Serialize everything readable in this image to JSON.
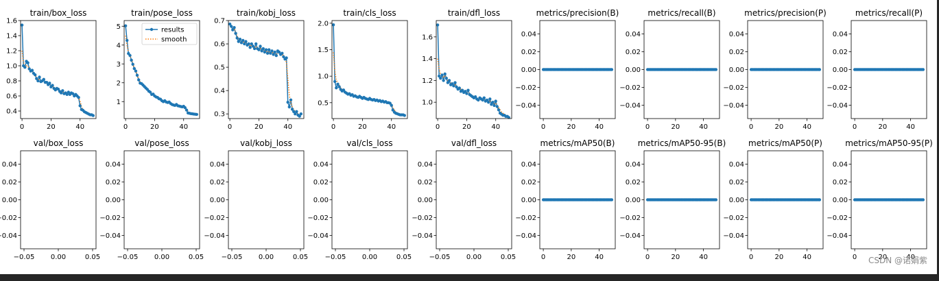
{
  "figure": {
    "watermark": "CSDN @诺娟紫",
    "colors": {
      "results": "#1f77b4",
      "smooth": "#ff7f0e",
      "axis": "#000000"
    }
  },
  "chart_data": [
    {
      "type": "line",
      "title": "train/box_loss",
      "xlim": [
        -1,
        51
      ],
      "ylim": [
        0.3,
        1.6
      ],
      "xticks": [
        0,
        20,
        40
      ],
      "yticks": [
        0.4,
        0.6,
        0.8,
        1.0,
        1.2,
        1.4,
        1.6
      ],
      "x": [
        0,
        1,
        2,
        3,
        4,
        5,
        6,
        7,
        8,
        9,
        10,
        11,
        12,
        13,
        14,
        15,
        16,
        17,
        18,
        19,
        20,
        21,
        22,
        23,
        24,
        25,
        26,
        27,
        28,
        29,
        30,
        31,
        32,
        33,
        34,
        35,
        36,
        37,
        38,
        39,
        40,
        41,
        42,
        43,
        44,
        45,
        46,
        47,
        48,
        49
      ],
      "results": [
        1.54,
        1.0,
        0.98,
        1.06,
        1.04,
        0.96,
        0.93,
        0.94,
        0.9,
        0.88,
        0.83,
        0.8,
        0.85,
        0.79,
        0.8,
        0.82,
        0.78,
        0.78,
        0.75,
        0.77,
        0.72,
        0.74,
        0.7,
        0.68,
        0.7,
        0.69,
        0.66,
        0.64,
        0.67,
        0.63,
        0.64,
        0.62,
        0.65,
        0.62,
        0.64,
        0.63,
        0.6,
        0.62,
        0.6,
        0.58,
        0.47,
        0.42,
        0.41,
        0.39,
        0.38,
        0.37,
        0.36,
        0.35,
        0.35,
        0.34
      ],
      "smooth": [
        1.2,
        1.05,
        1.0,
        1.0,
        1.0,
        0.96,
        0.94,
        0.93,
        0.9,
        0.88,
        0.85,
        0.82,
        0.82,
        0.8,
        0.8,
        0.8,
        0.78,
        0.77,
        0.76,
        0.75,
        0.73,
        0.73,
        0.71,
        0.7,
        0.7,
        0.68,
        0.67,
        0.66,
        0.66,
        0.64,
        0.64,
        0.63,
        0.63,
        0.62,
        0.62,
        0.62,
        0.61,
        0.61,
        0.6,
        0.58,
        0.53,
        0.46,
        0.42,
        0.4,
        0.38,
        0.37,
        0.36,
        0.35,
        0.35,
        0.34
      ],
      "legend": null
    },
    {
      "type": "line",
      "title": "train/pose_loss",
      "xlim": [
        -1,
        51
      ],
      "ylim": [
        0.1,
        5.3
      ],
      "xticks": [
        0,
        20,
        40
      ],
      "yticks": [
        1,
        2,
        3,
        4,
        5
      ],
      "x": [
        0,
        1,
        2,
        3,
        4,
        5,
        6,
        7,
        8,
        9,
        10,
        11,
        12,
        13,
        14,
        15,
        16,
        17,
        18,
        19,
        20,
        21,
        22,
        23,
        24,
        25,
        26,
        27,
        28,
        29,
        30,
        31,
        32,
        33,
        34,
        35,
        36,
        37,
        38,
        39,
        40,
        41,
        42,
        43,
        44,
        45,
        46,
        47,
        48,
        49
      ],
      "results": [
        5.02,
        4.25,
        3.55,
        3.45,
        3.2,
        2.98,
        2.75,
        2.62,
        2.4,
        2.15,
        1.98,
        1.95,
        1.88,
        1.8,
        1.72,
        1.65,
        1.55,
        1.5,
        1.38,
        1.4,
        1.3,
        1.25,
        1.22,
        1.15,
        1.13,
        1.05,
        1.0,
        1.05,
        0.98,
        0.95,
        0.98,
        0.9,
        0.85,
        0.82,
        0.8,
        0.85,
        0.78,
        0.76,
        0.74,
        0.72,
        0.75,
        0.68,
        0.55,
        0.4,
        0.38,
        0.36,
        0.35,
        0.34,
        0.33,
        0.32
      ],
      "smooth": [
        4.5,
        4.0,
        3.6,
        3.45,
        3.25,
        3.0,
        2.8,
        2.62,
        2.42,
        2.2,
        2.04,
        1.96,
        1.88,
        1.8,
        1.72,
        1.64,
        1.56,
        1.5,
        1.42,
        1.38,
        1.32,
        1.27,
        1.22,
        1.17,
        1.13,
        1.07,
        1.03,
        1.02,
        0.98,
        0.96,
        0.95,
        0.91,
        0.87,
        0.84,
        0.82,
        0.82,
        0.79,
        0.77,
        0.75,
        0.73,
        0.72,
        0.68,
        0.6,
        0.5,
        0.42,
        0.38,
        0.36,
        0.35,
        0.34,
        0.33
      ],
      "legend": {
        "entries": [
          "results",
          "smooth"
        ],
        "placement": "upper right"
      }
    },
    {
      "type": "line",
      "title": "train/kobj_loss",
      "xlim": [
        -1,
        51
      ],
      "ylim": [
        0.28,
        0.7
      ],
      "xticks": [
        0,
        20,
        40
      ],
      "yticks": [
        0.3,
        0.4,
        0.5,
        0.6,
        0.7
      ],
      "x": [
        0,
        1,
        2,
        3,
        4,
        5,
        6,
        7,
        8,
        9,
        10,
        11,
        12,
        13,
        14,
        15,
        16,
        17,
        18,
        19,
        20,
        21,
        22,
        23,
        24,
        25,
        26,
        27,
        28,
        29,
        30,
        31,
        32,
        33,
        34,
        35,
        36,
        37,
        38,
        39,
        40,
        41,
        42,
        43,
        44,
        45,
        46,
        47,
        48,
        49
      ],
      "results": [
        0.685,
        0.675,
        0.66,
        0.67,
        0.645,
        0.625,
        0.61,
        0.62,
        0.605,
        0.615,
        0.6,
        0.61,
        0.595,
        0.6,
        0.585,
        0.6,
        0.59,
        0.58,
        0.6,
        0.58,
        0.575,
        0.59,
        0.57,
        0.58,
        0.565,
        0.575,
        0.56,
        0.575,
        0.56,
        0.57,
        0.555,
        0.565,
        0.55,
        0.57,
        0.565,
        0.555,
        0.56,
        0.545,
        0.535,
        0.54,
        0.35,
        0.33,
        0.36,
        0.32,
        0.31,
        0.3,
        0.31,
        0.295,
        0.29,
        0.3
      ],
      "smooth": [
        0.685,
        0.68,
        0.67,
        0.665,
        0.65,
        0.635,
        0.62,
        0.62,
        0.61,
        0.61,
        0.605,
        0.605,
        0.6,
        0.6,
        0.59,
        0.595,
        0.59,
        0.585,
        0.59,
        0.58,
        0.58,
        0.58,
        0.575,
        0.575,
        0.57,
        0.57,
        0.565,
        0.565,
        0.56,
        0.565,
        0.56,
        0.56,
        0.555,
        0.56,
        0.56,
        0.555,
        0.555,
        0.55,
        0.54,
        0.52,
        0.45,
        0.38,
        0.35,
        0.33,
        0.32,
        0.31,
        0.305,
        0.3,
        0.3,
        0.3
      ],
      "legend": null
    },
    {
      "type": "line",
      "title": "train/cls_loss",
      "xlim": [
        -1,
        51
      ],
      "ylim": [
        0.2,
        2.05
      ],
      "xticks": [
        0,
        20,
        40
      ],
      "yticks": [
        0.5,
        1.0,
        1.5,
        2.0
      ],
      "x": [
        0,
        1,
        2,
        3,
        4,
        5,
        6,
        7,
        8,
        9,
        10,
        11,
        12,
        13,
        14,
        15,
        16,
        17,
        18,
        19,
        20,
        21,
        22,
        23,
        24,
        25,
        26,
        27,
        28,
        29,
        30,
        31,
        32,
        33,
        34,
        35,
        36,
        37,
        38,
        39,
        40,
        41,
        42,
        43,
        44,
        45,
        46,
        47,
        48,
        49
      ],
      "results": [
        1.97,
        0.9,
        0.78,
        0.85,
        0.8,
        0.75,
        0.72,
        0.74,
        0.7,
        0.68,
        0.66,
        0.67,
        0.64,
        0.65,
        0.62,
        0.63,
        0.61,
        0.6,
        0.62,
        0.6,
        0.58,
        0.6,
        0.58,
        0.57,
        0.56,
        0.58,
        0.56,
        0.55,
        0.56,
        0.54,
        0.55,
        0.53,
        0.54,
        0.52,
        0.53,
        0.51,
        0.52,
        0.5,
        0.5,
        0.49,
        0.45,
        0.36,
        0.32,
        0.3,
        0.29,
        0.28,
        0.27,
        0.27,
        0.27,
        0.26
      ],
      "smooth": [
        1.45,
        1.1,
        0.92,
        0.88,
        0.83,
        0.78,
        0.75,
        0.74,
        0.72,
        0.7,
        0.68,
        0.67,
        0.66,
        0.65,
        0.64,
        0.63,
        0.62,
        0.61,
        0.61,
        0.6,
        0.59,
        0.59,
        0.58,
        0.58,
        0.57,
        0.57,
        0.56,
        0.56,
        0.56,
        0.55,
        0.55,
        0.54,
        0.54,
        0.53,
        0.53,
        0.52,
        0.52,
        0.51,
        0.5,
        0.5,
        0.47,
        0.41,
        0.36,
        0.33,
        0.3,
        0.29,
        0.28,
        0.27,
        0.27,
        0.26
      ],
      "legend": null
    },
    {
      "type": "line",
      "title": "train/dfl_loss",
      "xlim": [
        -1,
        51
      ],
      "ylim": [
        0.85,
        1.75
      ],
      "xticks": [
        0,
        20,
        40
      ],
      "yticks": [
        1.0,
        1.2,
        1.4,
        1.6
      ],
      "x": [
        0,
        1,
        2,
        3,
        4,
        5,
        6,
        7,
        8,
        9,
        10,
        11,
        12,
        13,
        14,
        15,
        16,
        17,
        18,
        19,
        20,
        21,
        22,
        23,
        24,
        25,
        26,
        27,
        28,
        29,
        30,
        31,
        32,
        33,
        34,
        35,
        36,
        37,
        38,
        39,
        40,
        41,
        42,
        43,
        44,
        45,
        46,
        47,
        48,
        49
      ],
      "results": [
        1.71,
        1.24,
        1.22,
        1.25,
        1.2,
        1.26,
        1.22,
        1.18,
        1.2,
        1.16,
        1.17,
        1.15,
        1.18,
        1.14,
        1.12,
        1.13,
        1.1,
        1.11,
        1.09,
        1.1,
        1.08,
        1.11,
        1.07,
        1.06,
        1.05,
        1.04,
        1.05,
        1.03,
        1.02,
        1.04,
        1.03,
        1.02,
        1.04,
        1.01,
        1.02,
        1.0,
        1.03,
        0.98,
        1.0,
        0.97,
        1.01,
        0.96,
        0.93,
        0.9,
        0.89,
        0.88,
        0.88,
        0.87,
        0.87,
        0.86
      ],
      "smooth": [
        1.4,
        1.3,
        1.26,
        1.25,
        1.23,
        1.24,
        1.22,
        1.2,
        1.2,
        1.18,
        1.17,
        1.16,
        1.16,
        1.15,
        1.14,
        1.13,
        1.12,
        1.11,
        1.1,
        1.1,
        1.09,
        1.09,
        1.08,
        1.07,
        1.06,
        1.05,
        1.05,
        1.04,
        1.03,
        1.03,
        1.03,
        1.02,
        1.03,
        1.02,
        1.02,
        1.01,
        1.01,
        1.0,
        1.0,
        0.99,
        0.99,
        0.97,
        0.95,
        0.93,
        0.91,
        0.9,
        0.89,
        0.88,
        0.87,
        0.87
      ],
      "legend": null
    },
    {
      "type": "line",
      "title": "metrics/precision(B)",
      "xlim": [
        -2.5,
        51.5
      ],
      "ylim": [
        -0.055,
        0.055
      ],
      "xticks": [
        0,
        20,
        40
      ],
      "yticks": [
        -0.04,
        -0.02,
        0.0,
        0.02,
        0.04
      ],
      "ytick_labels": [
        "−0.04",
        "−0.02",
        "0.00",
        "0.02",
        "0.04"
      ],
      "constant": 0,
      "n": 50,
      "legend": null
    },
    {
      "type": "line",
      "title": "metrics/recall(B)",
      "xlim": [
        -2.5,
        51.5
      ],
      "ylim": [
        -0.055,
        0.055
      ],
      "xticks": [
        0,
        20,
        40
      ],
      "yticks": [
        -0.04,
        -0.02,
        0.0,
        0.02,
        0.04
      ],
      "ytick_labels": [
        "−0.04",
        "−0.02",
        "0.00",
        "0.02",
        "0.04"
      ],
      "constant": 0,
      "n": 50,
      "legend": null
    },
    {
      "type": "line",
      "title": "metrics/precision(P)",
      "xlim": [
        -2.5,
        51.5
      ],
      "ylim": [
        -0.055,
        0.055
      ],
      "xticks": [
        0,
        20,
        40
      ],
      "yticks": [
        -0.04,
        -0.02,
        0.0,
        0.02,
        0.04
      ],
      "ytick_labels": [
        "−0.04",
        "−0.02",
        "0.00",
        "0.02",
        "0.04"
      ],
      "constant": 0,
      "n": 50,
      "legend": null
    },
    {
      "type": "line",
      "title": "metrics/recall(P)",
      "xlim": [
        -2.5,
        51.5
      ],
      "ylim": [
        -0.055,
        0.055
      ],
      "xticks": [
        0,
        20,
        40
      ],
      "yticks": [
        -0.04,
        -0.02,
        0.0,
        0.02,
        0.04
      ],
      "ytick_labels": [
        "−0.04",
        "−0.02",
        "0.00",
        "0.02",
        "0.04"
      ],
      "constant": 0,
      "n": 50,
      "legend": null
    },
    {
      "type": "line",
      "title": "val/box_loss",
      "xlim": [
        -0.055,
        0.055
      ],
      "ylim": [
        -0.055,
        0.055
      ],
      "xticks": [
        -0.05,
        0.0,
        0.05
      ],
      "xtick_labels": [
        "−0.05",
        "0.00",
        "0.05"
      ],
      "yticks": [
        -0.04,
        -0.02,
        0.0,
        0.02,
        0.04
      ],
      "ytick_labels": [
        "−0.04",
        "−0.02",
        "0.00",
        "0.02",
        "0.04"
      ],
      "empty": true,
      "legend": null
    },
    {
      "type": "line",
      "title": "val/pose_loss",
      "xlim": [
        -0.055,
        0.055
      ],
      "ylim": [
        -0.055,
        0.055
      ],
      "xticks": [
        -0.05,
        0.0,
        0.05
      ],
      "xtick_labels": [
        "−0.05",
        "0.00",
        "0.05"
      ],
      "yticks": [
        -0.04,
        -0.02,
        0.0,
        0.02,
        0.04
      ],
      "ytick_labels": [
        "−0.04",
        "−0.02",
        "0.00",
        "0.02",
        "0.04"
      ],
      "empty": true,
      "legend": null
    },
    {
      "type": "line",
      "title": "val/kobj_loss",
      "xlim": [
        -0.055,
        0.055
      ],
      "ylim": [
        -0.055,
        0.055
      ],
      "xticks": [
        -0.05,
        0.0,
        0.05
      ],
      "xtick_labels": [
        "−0.05",
        "0.00",
        "0.05"
      ],
      "yticks": [
        -0.04,
        -0.02,
        0.0,
        0.02,
        0.04
      ],
      "ytick_labels": [
        "−0.04",
        "−0.02",
        "0.00",
        "0.02",
        "0.04"
      ],
      "empty": true,
      "legend": null
    },
    {
      "type": "line",
      "title": "val/cls_loss",
      "xlim": [
        -0.055,
        0.055
      ],
      "ylim": [
        -0.055,
        0.055
      ],
      "xticks": [
        -0.05,
        0.0,
        0.05
      ],
      "xtick_labels": [
        "−0.05",
        "0.00",
        "0.05"
      ],
      "yticks": [
        -0.04,
        -0.02,
        0.0,
        0.02,
        0.04
      ],
      "ytick_labels": [
        "−0.04",
        "−0.02",
        "0.00",
        "0.02",
        "0.04"
      ],
      "empty": true,
      "legend": null
    },
    {
      "type": "line",
      "title": "val/dfl_loss",
      "xlim": [
        -0.055,
        0.055
      ],
      "ylim": [
        -0.055,
        0.055
      ],
      "xticks": [
        -0.05,
        0.0,
        0.05
      ],
      "xtick_labels": [
        "−0.05",
        "0.00",
        "0.05"
      ],
      "yticks": [
        -0.04,
        -0.02,
        0.0,
        0.02,
        0.04
      ],
      "ytick_labels": [
        "−0.04",
        "−0.02",
        "0.00",
        "0.02",
        "0.04"
      ],
      "empty": true,
      "legend": null
    },
    {
      "type": "line",
      "title": "metrics/mAP50(B)",
      "xlim": [
        -2.5,
        51.5
      ],
      "ylim": [
        -0.055,
        0.055
      ],
      "xticks": [
        0,
        20,
        40
      ],
      "yticks": [
        -0.04,
        -0.02,
        0.0,
        0.02,
        0.04
      ],
      "ytick_labels": [
        "−0.04",
        "−0.02",
        "0.00",
        "0.02",
        "0.04"
      ],
      "constant": 0,
      "n": 50,
      "legend": null
    },
    {
      "type": "line",
      "title": "metrics/mAP50-95(B)",
      "xlim": [
        -2.5,
        51.5
      ],
      "ylim": [
        -0.055,
        0.055
      ],
      "xticks": [
        0,
        20,
        40
      ],
      "yticks": [
        -0.04,
        -0.02,
        0.0,
        0.02,
        0.04
      ],
      "ytick_labels": [
        "−0.04",
        "−0.02",
        "0.00",
        "0.02",
        "0.04"
      ],
      "constant": 0,
      "n": 50,
      "legend": null
    },
    {
      "type": "line",
      "title": "metrics/mAP50(P)",
      "xlim": [
        -2.5,
        51.5
      ],
      "ylim": [
        -0.055,
        0.055
      ],
      "xticks": [
        0,
        20,
        40
      ],
      "yticks": [
        -0.04,
        -0.02,
        0.0,
        0.02,
        0.04
      ],
      "ytick_labels": [
        "−0.04",
        "−0.02",
        "0.00",
        "0.02",
        "0.04"
      ],
      "constant": 0,
      "n": 50,
      "legend": null
    },
    {
      "type": "line",
      "title": "metrics/mAP50-95(P)",
      "xlim": [
        -2.5,
        51.5
      ],
      "ylim": [
        -0.055,
        0.055
      ],
      "xticks": [
        0,
        20,
        40
      ],
      "yticks": [
        -0.04,
        -0.02,
        0.0,
        0.02,
        0.04
      ],
      "ytick_labels": [
        "−0.04",
        "−0.02",
        "0.00",
        "0.02",
        "0.04"
      ],
      "constant": 0,
      "n": 50,
      "legend": null
    }
  ]
}
